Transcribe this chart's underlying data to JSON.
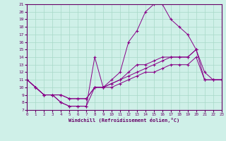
{
  "xlabel": "Windchill (Refroidissement éolien,°C)",
  "xlim": [
    0,
    23
  ],
  "ylim": [
    7,
    21
  ],
  "xticks": [
    0,
    1,
    2,
    3,
    4,
    5,
    6,
    7,
    8,
    9,
    10,
    11,
    12,
    13,
    14,
    15,
    16,
    17,
    18,
    19,
    20,
    21,
    22,
    23
  ],
  "yticks": [
    7,
    8,
    9,
    10,
    11,
    12,
    13,
    14,
    15,
    16,
    17,
    18,
    19,
    20,
    21
  ],
  "bg_color": "#cff0e8",
  "grid_color": "#a8d8c8",
  "line_color": "#880088",
  "lines": [
    {
      "x": [
        0,
        1,
        2,
        3,
        4,
        5,
        6,
        7,
        8,
        9,
        10,
        11,
        12,
        13,
        14,
        15,
        16,
        17,
        18,
        19,
        20,
        21,
        22,
        23
      ],
      "y": [
        11,
        10,
        9,
        9,
        8,
        7.5,
        7.5,
        7.5,
        10,
        10,
        10.5,
        11,
        12,
        13,
        13,
        13.5,
        14,
        14,
        14,
        14,
        15,
        11,
        11,
        11
      ]
    },
    {
      "x": [
        0,
        1,
        2,
        3,
        4,
        5,
        6,
        7,
        8,
        9,
        10,
        11,
        12,
        13,
        14,
        15,
        16,
        17,
        18,
        19,
        20
      ],
      "y": [
        11,
        10,
        9,
        9,
        8,
        7.5,
        7.5,
        7.5,
        14,
        10,
        11,
        12,
        16,
        17.5,
        20,
        21,
        21,
        19,
        18,
        17,
        15
      ]
    },
    {
      "x": [
        0,
        1,
        2,
        3,
        4,
        5,
        6,
        7,
        8,
        9,
        10,
        11,
        12,
        13,
        14,
        15,
        16,
        17,
        18,
        19,
        20,
        21,
        22,
        23
      ],
      "y": [
        11,
        10,
        9,
        9,
        9,
        8.5,
        8.5,
        8.5,
        10,
        10,
        10.5,
        11,
        11.5,
        12,
        12.5,
        13,
        13.5,
        14,
        14,
        14,
        15,
        12,
        11,
        11
      ]
    },
    {
      "x": [
        0,
        1,
        2,
        3,
        4,
        5,
        6,
        7,
        8,
        9,
        10,
        11,
        12,
        13,
        14,
        15,
        16,
        17,
        18,
        19,
        20,
        21,
        22,
        23
      ],
      "y": [
        11,
        10,
        9,
        9,
        9,
        8.5,
        8.5,
        8.5,
        10,
        10,
        10,
        10.5,
        11,
        11.5,
        12,
        12,
        12.5,
        13,
        13,
        13,
        14,
        11,
        11,
        11
      ]
    }
  ]
}
